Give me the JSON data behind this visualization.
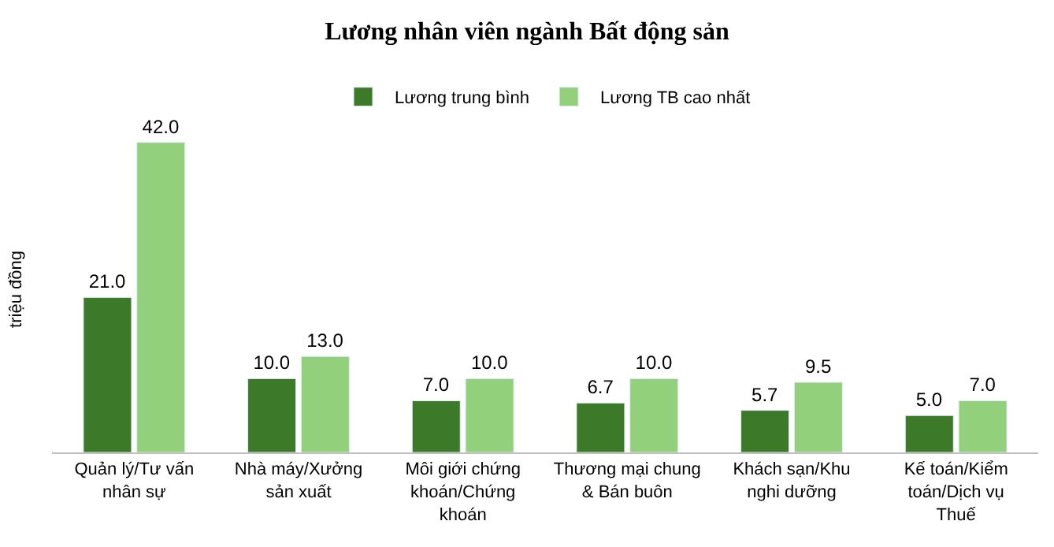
{
  "chart_data": {
    "type": "bar",
    "title": "Lương nhân viên ngành Bất động sản",
    "ylabel": "triệu đồng",
    "categories": [
      "Quản lý/Tư vấn nhân sự",
      "Nhà máy/Xưởng sản xuất",
      "Môi giới chứng khoán/Chứng khoán",
      "Thương mại chung & Bán buôn",
      "Khách sạn/Khu nghi dưỡng",
      "Kế toán/Kiểm toán/Dịch vụ Thuế"
    ],
    "series": [
      {
        "name": "Lương trung bình",
        "color": "#3c7a2a",
        "values": [
          21.0,
          10.0,
          7.0,
          6.7,
          5.7,
          5.0
        ],
        "value_labels": [
          "21.0",
          "10.0",
          "7.0",
          "6.7",
          "5.7",
          "5.0"
        ]
      },
      {
        "name": "Lương TB cao nhất",
        "color": "#93d07c",
        "values": [
          42.0,
          13.0,
          10.0,
          10.0,
          9.5,
          7.0
        ],
        "value_labels": [
          "42.0",
          "13.0",
          "10.0",
          "10.0",
          "9.5",
          "7.0"
        ]
      }
    ],
    "legend": "top",
    "tick_labels": "x"
  }
}
